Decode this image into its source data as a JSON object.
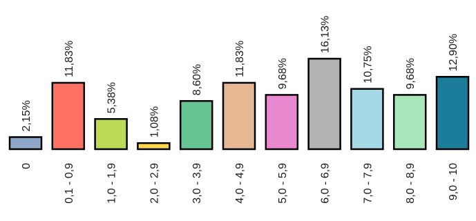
{
  "chart_data": {
    "type": "bar",
    "categories": [
      "0",
      "0,1 - 0,9",
      "1,0 - 1,9",
      "2,0 - 2,9",
      "3,0 - 3,9",
      "4,0 - 4,9",
      "5,0 - 5,9",
      "6,0 - 6,9",
      "7,0 - 7,9",
      "8,0 - 8,9",
      "9,0 - 10"
    ],
    "values": [
      2.15,
      11.83,
      5.38,
      1.08,
      8.6,
      11.83,
      9.68,
      16.13,
      10.75,
      9.68,
      12.9
    ],
    "data_labels": [
      "2,15%",
      "11,83%",
      "5,38%",
      "1,08%",
      "8,60%",
      "11,83%",
      "9,68%",
      "16,13%",
      "10,75%",
      "9,68%",
      "12,90%"
    ],
    "colors": [
      "#8EA6C8",
      "#FF7160",
      "#BCDA55",
      "#FFD74A",
      "#66C493",
      "#E5B893",
      "#E889D0",
      "#B2B2B2",
      "#A6D9E6",
      "#A9E7BA",
      "#1B7D99"
    ],
    "title": "",
    "xlabel": "",
    "ylabel": "",
    "ylim": [
      0,
      16.13
    ],
    "grid": false,
    "legend": "none"
  }
}
